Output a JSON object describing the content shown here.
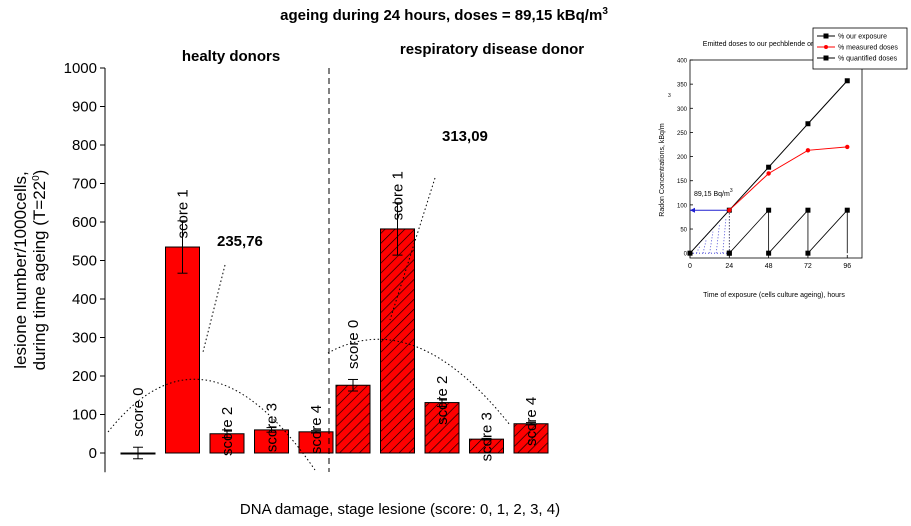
{
  "chart_data": [
    {
      "type": "bar",
      "title_parts": [
        "ageing during 24 hours, doses = 89,15 kBq/m",
        "3"
      ],
      "ylabel_lines": [
        "lesione number/1000cells,",
        "during time ageing (T=22",
        "0",
        ")"
      ],
      "xlabel": "DNA damage, stage lesione (score: 0, 1, 2, 3, 4)",
      "ylim": [
        0,
        1000
      ],
      "yticks": [
        "0",
        "100",
        "200",
        "300",
        "400",
        "500",
        "600",
        "700",
        "800",
        "900",
        "1000"
      ],
      "grid": false,
      "groups": [
        {
          "label": "healty donors",
          "fill": "solid",
          "categories": [
            "score 0",
            "score 1",
            "score 2",
            "score 3",
            "score 4"
          ],
          "values": [
            0,
            535,
            50,
            60,
            55
          ],
          "errors": [
            15,
            68,
            10,
            6,
            3
          ],
          "annotation": "235,76"
        },
        {
          "label": "respiratory disease donor",
          "fill": "hatched",
          "categories": [
            "score 0",
            "score 1",
            "score 2",
            "score 3",
            "score 4"
          ],
          "values": [
            176,
            582,
            131,
            36,
            76
          ],
          "errors": [
            15,
            68,
            10,
            2,
            3
          ],
          "annotation": "313,09"
        }
      ],
      "bar_color": "#ff0000"
    },
    {
      "type": "line",
      "title": "Emitted doses to our pechblende ore",
      "xlabel": "Time of exposure (cells culture ageing), hours",
      "ylabel": "Radon Concentrations, kBq/m",
      "ylabel_sup": "3",
      "xlim": [
        0,
        105
      ],
      "ylim": [
        -10,
        400
      ],
      "xticks": [
        0,
        24,
        48,
        72,
        96
      ],
      "yticks": [
        0,
        50,
        100,
        150,
        200,
        250,
        300,
        350,
        400
      ],
      "legend_position": "top-right",
      "annotation": "89,15 Bq/m",
      "annotation_sup": "3",
      "series": [
        {
          "name": "% our exposure",
          "color": "#000000",
          "x": [
            0,
            24,
            48,
            72,
            96
          ],
          "y": [
            0,
            89,
            178,
            268,
            357
          ]
        },
        {
          "name": "% measured doses",
          "color": "#ff0000",
          "x": [
            24,
            48,
            72,
            96
          ],
          "y": [
            89,
            165,
            213,
            220
          ]
        },
        {
          "name": "% quantified doses",
          "color": "#000000",
          "x": [
            24,
            24,
            48,
            48,
            72,
            72,
            96
          ],
          "y": [
            0,
            0,
            89,
            0,
            89,
            0,
            89
          ]
        }
      ]
    }
  ]
}
